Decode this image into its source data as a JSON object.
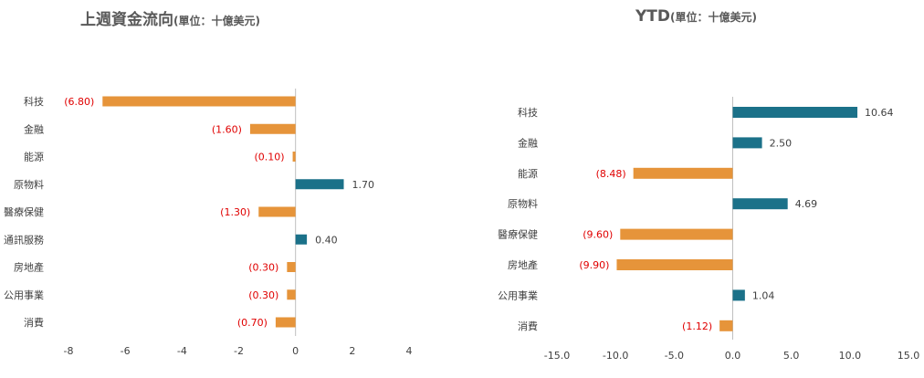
{
  "colors": {
    "positive": "#1b7189",
    "negative": "#e6943a",
    "negative_label": "#e00000",
    "axis": "#bfbfbf",
    "text": "#404040"
  },
  "chart_data": [
    {
      "type": "bar",
      "orientation": "horizontal",
      "title": "上週資金流向",
      "unit": "(單位：十億美元)",
      "categories": [
        "科技",
        "金融",
        "能源",
        "原物料",
        "醫療保健",
        "通訊服務",
        "房地產",
        "公用事業",
        "消費"
      ],
      "values": [
        -6.8,
        -1.6,
        -0.1,
        1.7,
        -1.3,
        0.4,
        -0.3,
        -0.3,
        -0.7
      ],
      "value_labels": [
        "(6.80)",
        "(1.60)",
        "(0.10)",
        "1.70",
        "(1.30)",
        "0.40",
        "(0.30)",
        "(0.30)",
        "(0.70)"
      ],
      "xlim": [
        -8,
        4
      ],
      "xticks": [
        -8,
        -6,
        -4,
        -2,
        0,
        2,
        4
      ],
      "xtick_labels": [
        "-8",
        "-6",
        "-4",
        "-2",
        "0",
        "2",
        "4"
      ],
      "grid": false,
      "legend": "none"
    },
    {
      "type": "bar",
      "orientation": "horizontal",
      "title": "YTD",
      "unit": "(單位：十億美元)",
      "categories": [
        "科技",
        "金融",
        "能源",
        "原物料",
        "醫療保健",
        "房地產",
        "公用事業",
        "消費"
      ],
      "values": [
        10.64,
        2.5,
        -8.48,
        4.69,
        -9.6,
        -9.9,
        1.04,
        -1.12
      ],
      "value_labels": [
        "10.64",
        "2.50",
        "(8.48)",
        "4.69",
        "(9.60)",
        "(9.90)",
        "1.04",
        "(1.12)"
      ],
      "xlim": [
        -15,
        15
      ],
      "xticks": [
        -15,
        -10,
        -5,
        0,
        5,
        10,
        15
      ],
      "xtick_labels": [
        "-15.0",
        "-10.0",
        "-5.0",
        "0.0",
        "5.0",
        "10.0",
        "15.0"
      ],
      "grid": false,
      "legend": "none"
    }
  ]
}
